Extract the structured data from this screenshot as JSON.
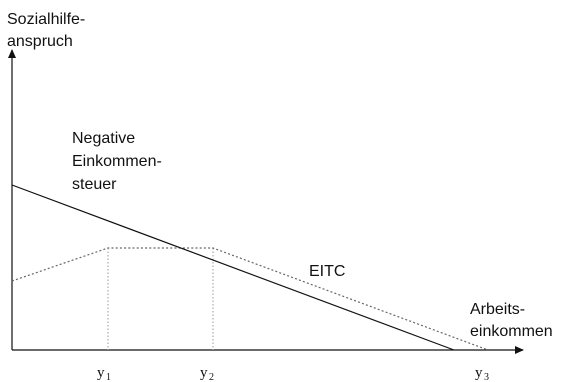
{
  "chart_data": {
    "type": "line",
    "title": "",
    "ylabel_lines": [
      "Sozialhilfe-",
      "anspruch"
    ],
    "xlabel_lines": [
      "Arbeits-",
      "einkommen"
    ],
    "x_tick_labels": [
      {
        "base": "y",
        "sub": "1"
      },
      {
        "base": "y",
        "sub": "2"
      },
      {
        "base": "y",
        "sub": "3"
      }
    ],
    "series": [
      {
        "name_lines": [
          "Negative",
          "Einkommen-",
          "steuer"
        ],
        "style": "solid",
        "points": [
          {
            "x": "0",
            "y": "high"
          },
          {
            "x": "y3",
            "y": "0"
          }
        ]
      },
      {
        "name": "EITC",
        "style": "dotted",
        "points": [
          {
            "x": "0",
            "y": "low"
          },
          {
            "x": "y1",
            "y": "max"
          },
          {
            "x": "y2",
            "y": "max"
          },
          {
            "x": "y3",
            "y": "0"
          }
        ]
      }
    ],
    "grid": false,
    "legend": "none",
    "colors": {
      "axis": "#111111",
      "solid_line": "#111111",
      "dotted_line": "#666666"
    }
  }
}
